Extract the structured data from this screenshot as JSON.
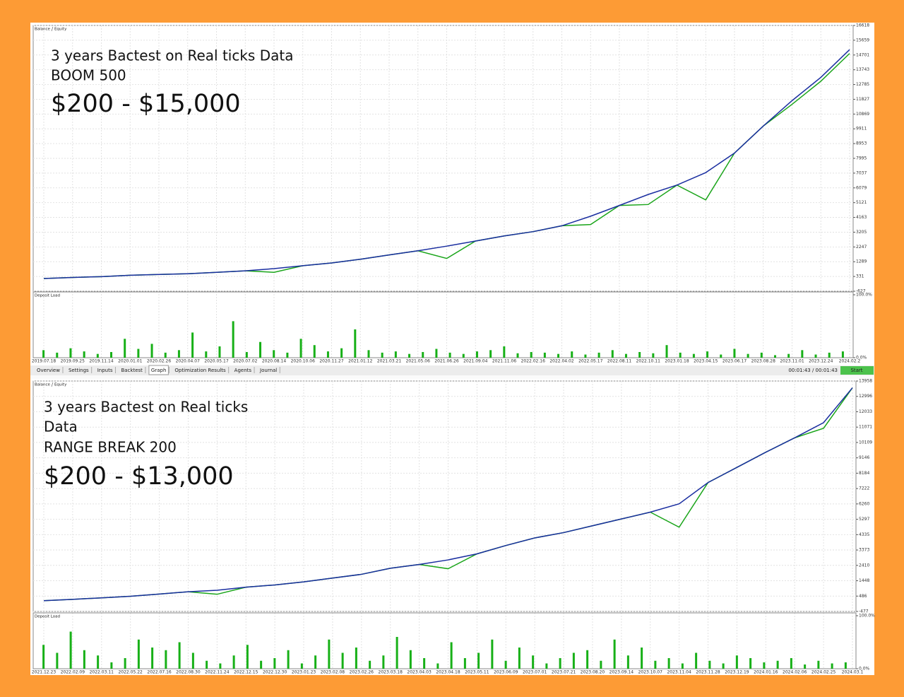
{
  "chart_data": [
    {
      "type": "line",
      "legend": "top-left",
      "annotations": [
        "3 years Bactest on Real ticks Data",
        "BOOM 500",
        "$200 - $15,000"
      ],
      "categories": [
        "2019.07.18",
        "2019.09.25",
        "2019.11.14",
        "2020.01.01",
        "2020.02.26",
        "2020.04.07",
        "2020.05.17",
        "2020.07.02",
        "2020.08.14",
        "2020.10.06",
        "2020.11.27",
        "2021.01.12",
        "2021.03.21",
        "2021.05.06",
        "2021.06.26",
        "2021.09.04",
        "2021.11.06",
        "2022.02.16",
        "2022.04.02",
        "2022.05.17",
        "2022.08.11",
        "2022.10.11",
        "2023.01.18",
        "2023.04.15",
        "2023.06.17",
        "2023.08.28",
        "2023.11.01",
        "2023.12.24",
        "2024.02.2"
      ],
      "series": [
        {
          "name": "Equity",
          "color": "#1aa51a",
          "values": [
            200,
            270,
            320,
            410,
            460,
            510,
            600,
            700,
            600,
            1030,
            1210,
            1450,
            1730,
            2000,
            1500,
            2630,
            2960,
            3240,
            3620,
            3700,
            4940,
            5000,
            6260,
            5300,
            8340,
            10090,
            11500,
            13000,
            14800
          ]
        },
        {
          "name": "Balance",
          "color": "#1a2ea0",
          "values": [
            200,
            270,
            320,
            410,
            460,
            510,
            600,
            700,
            840,
            1030,
            1210,
            1450,
            1730,
            2000,
            2300,
            2630,
            2960,
            3240,
            3620,
            4240,
            4940,
            5650,
            6260,
            7070,
            8340,
            10090,
            11740,
            13250,
            15050
          ]
        }
      ],
      "ylim": [
        -627,
        16618
      ],
      "yticks": [
        -627,
        331,
        1289,
        2247,
        3205,
        4163,
        5121,
        6079,
        7037,
        7995,
        8953,
        9911,
        10869,
        11827,
        12785,
        13743,
        14701,
        15659,
        16618
      ],
      "grid": true
    },
    {
      "type": "bar",
      "title": "Deposit Load",
      "color": "#17b017",
      "values": [
        12,
        8,
        15,
        10,
        6,
        9,
        30,
        14,
        22,
        8,
        12,
        40,
        10,
        18,
        58,
        9,
        25,
        12,
        8,
        30,
        20,
        10,
        15,
        45,
        12,
        8,
        10,
        6,
        9,
        14,
        8,
        6,
        10,
        12,
        18,
        7,
        9,
        8,
        6,
        10,
        5,
        8,
        12,
        6,
        9,
        7,
        20,
        8,
        6,
        10,
        5,
        14,
        6,
        8,
        4,
        6,
        12,
        5,
        8,
        10
      ],
      "ylim": [
        0,
        100
      ],
      "yticks": [
        {
          "value": 0,
          "label": "0.0%"
        },
        {
          "value": 100,
          "label": "100.0%"
        }
      ]
    },
    {
      "type": "line",
      "legend": "top-left",
      "annotations": [
        "3 years Bactest on Real ticks",
        "Data",
        "RANGE BREAK 200",
        "$200 - $13,000"
      ],
      "categories": [
        "2021.12.23",
        "2022.02.09",
        "2022.03.11",
        "2022.05.22",
        "2022.07.16",
        "2022.08.30",
        "2022.11.24",
        "2022.12.15",
        "2022.12.30",
        "2023.01.23",
        "2023.02.08",
        "2023.02.26",
        "2023.03.18",
        "2023.04.03",
        "2023.04.18",
        "2023.05.11",
        "2023.06.09",
        "2023.07.01",
        "2023.07.21",
        "2023.08.20",
        "2023.09.14",
        "2023.10.07",
        "2023.11.04",
        "2023.11.28",
        "2023.12.19",
        "2024.01.16",
        "2024.02.06",
        "2024.02.25",
        "2024.03.1"
      ],
      "series": [
        {
          "name": "Equity",
          "color": "#1aa51a",
          "values": [
            200,
            283,
            378,
            473,
            615,
            758,
            600,
            1043,
            1185,
            1375,
            1613,
            1850,
            2230,
            2468,
            2200,
            3133,
            3655,
            4130,
            4463,
            4890,
            5318,
            5745,
            4800,
            7598,
            8548,
            9498,
            10400,
            11000,
            13535
          ]
        },
        {
          "name": "Balance",
          "color": "#1a2ea0",
          "values": [
            200,
            283,
            378,
            473,
            615,
            758,
            853,
            1043,
            1185,
            1375,
            1613,
            1850,
            2230,
            2468,
            2753,
            3133,
            3655,
            4130,
            4463,
            4890,
            5318,
            5745,
            6268,
            7598,
            8548,
            9498,
            10400,
            11350,
            13535
          ]
        }
      ],
      "ylim": [
        -477,
        13958
      ],
      "yticks": [
        -477,
        486,
        1448,
        2410,
        3373,
        4335,
        5297,
        6260,
        7222,
        8184,
        9146,
        10109,
        11071,
        12033,
        12996,
        13958
      ],
      "grid": true
    },
    {
      "type": "bar",
      "title": "Deposit Load",
      "color": "#17b017",
      "values": [
        45,
        30,
        70,
        35,
        25,
        12,
        20,
        55,
        40,
        35,
        50,
        30,
        15,
        10,
        25,
        45,
        15,
        20,
        35,
        10,
        25,
        55,
        30,
        40,
        15,
        25,
        60,
        35,
        20,
        10,
        50,
        20,
        30,
        55,
        15,
        40,
        25,
        10,
        20,
        30,
        35,
        15,
        55,
        25,
        40,
        15,
        20,
        10,
        30,
        15,
        10,
        25,
        20,
        12,
        15,
        20,
        8,
        15,
        10,
        12
      ],
      "ylim": [
        0,
        100
      ],
      "yticks": [
        {
          "value": 0,
          "label": "0.0%"
        },
        {
          "value": 100,
          "label": "100.0%"
        }
      ]
    }
  ],
  "toolbar": {
    "tabs": [
      "Overview",
      "Settings",
      "Inputs",
      "Backtest",
      "Graph",
      "Optimization Results",
      "Agents",
      "Journal"
    ],
    "selected_tab": 4,
    "elapsed": "00:01:43 / 00:01:43",
    "button": "Start"
  }
}
